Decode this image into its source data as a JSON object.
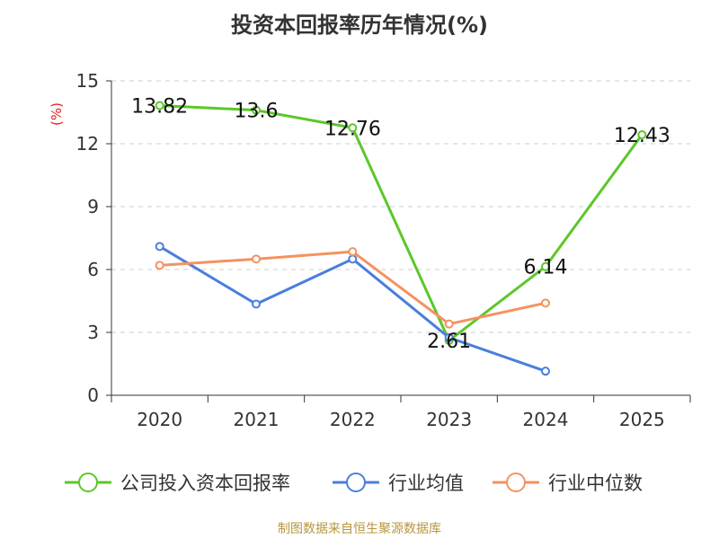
{
  "chart_data": {
    "type": "line",
    "title": "投资本回报率历年情况(%)",
    "ylabel": "(%)",
    "xlabel": "",
    "categories": [
      "2020",
      "2021",
      "2022",
      "2023",
      "2024",
      "2025"
    ],
    "ylim": [
      0,
      15
    ],
    "yticks": [
      0,
      3,
      6,
      9,
      12,
      15
    ],
    "grid": "horizontal dashed",
    "legend_position": "bottom",
    "series": [
      {
        "name": "公司投入资本回报率",
        "color": "#5cc72a",
        "values": [
          13.82,
          13.6,
          12.76,
          2.61,
          6.14,
          12.43
        ],
        "labels": [
          "13.82",
          "13.6",
          "12.76",
          "2.61",
          "6.14",
          "12.43"
        ]
      },
      {
        "name": "行业均值",
        "color": "#4a7fdc",
        "values": [
          7.1,
          4.35,
          6.5,
          2.75,
          1.15,
          null
        ]
      },
      {
        "name": "行业中位数",
        "color": "#f59260",
        "values": [
          6.2,
          6.5,
          6.85,
          3.4,
          4.4,
          null
        ]
      }
    ]
  },
  "source": "制图数据来自恒生聚源数据库"
}
